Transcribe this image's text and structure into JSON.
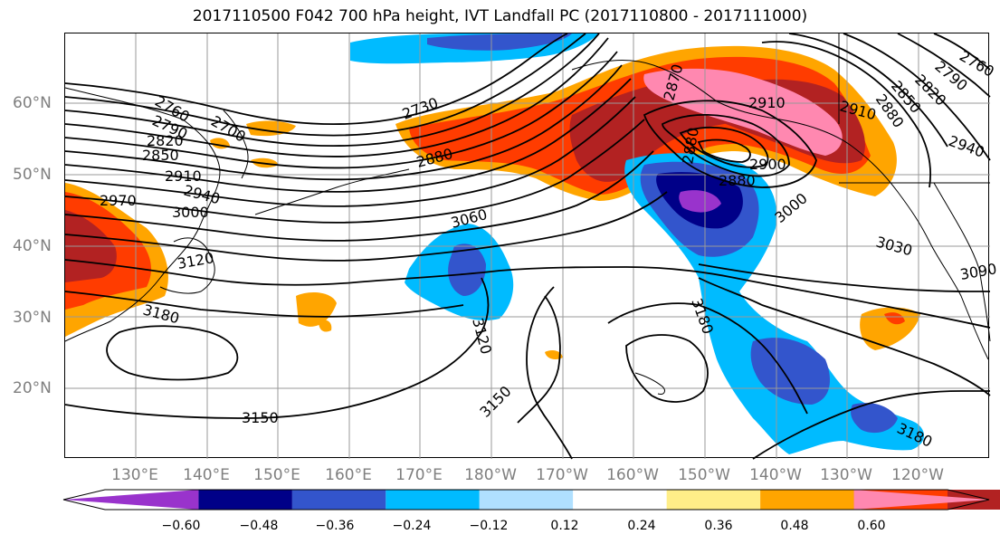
{
  "title": "2017110500 F042 700 hPa height, IVT Landfall PC (2017110800 - 2017111000)",
  "lat_ticks": [
    "60°N",
    "50°N",
    "40°N",
    "30°N",
    "20°N"
  ],
  "lon_ticks": [
    "130°E",
    "140°E",
    "150°E",
    "160°E",
    "170°E",
    "180°W",
    "170°W",
    "160°W",
    "150°W",
    "140°W",
    "130°W",
    "120°W"
  ],
  "contour_labels": [
    "2760",
    "2790",
    "2700",
    "2820",
    "2850",
    "2910",
    "2940",
    "2970",
    "3000",
    "2730",
    "2880",
    "3060",
    "3120",
    "3180",
    "3150",
    "3120",
    "3150",
    "2870",
    "2910",
    "2880",
    "2880",
    "2900",
    "3000",
    "3030",
    "3180",
    "3180",
    "2910",
    "2940",
    "2760",
    "2790",
    "2820",
    "2850",
    "2880",
    "3090"
  ],
  "colorbar": {
    "colors": [
      "#9933CC",
      "#000088",
      "#3355CC",
      "#00BBFF",
      "#B0E0FF",
      "#FFFFFF",
      "#FFEE88",
      "#FFA500",
      "#FF3C00",
      "#B22222",
      "#FF88B0"
    ],
    "labels": [
      "−0.60",
      "−0.48",
      "−0.36",
      "−0.24",
      "−0.12",
      "0.12",
      "0.24",
      "0.36",
      "0.48",
      "0.60"
    ]
  }
}
